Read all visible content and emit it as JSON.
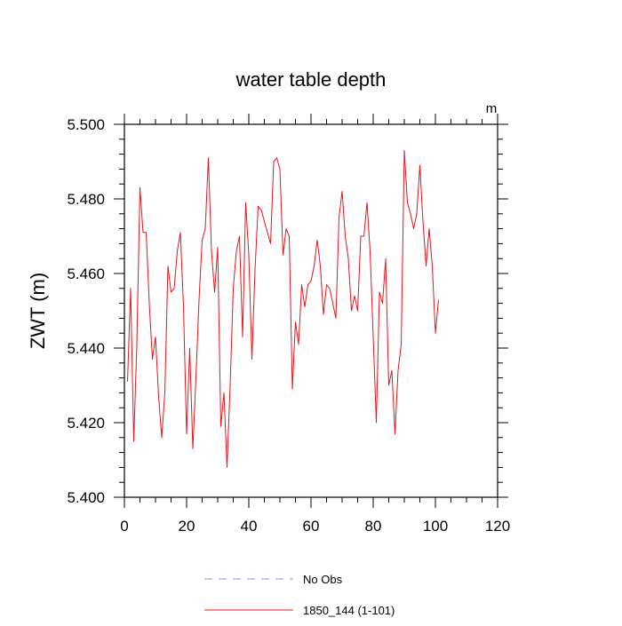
{
  "chart_data": {
    "type": "line",
    "title": "water table depth",
    "units_label": "m",
    "ylabel": "ZWT  (m)",
    "xlabel": "",
    "xlim": [
      0,
      120
    ],
    "ylim": [
      5.4,
      5.5
    ],
    "x_ticks": [
      0,
      20,
      40,
      60,
      80,
      100,
      120
    ],
    "x_tick_labels": [
      "0",
      "20",
      "40",
      "60",
      "80",
      "100",
      "120"
    ],
    "y_ticks": [
      5.4,
      5.42,
      5.44,
      5.46,
      5.48,
      5.5
    ],
    "y_tick_labels": [
      "5.400",
      "5.420",
      "5.440",
      "5.460",
      "5.480",
      "5.500"
    ],
    "grid": false,
    "legend_position": "bottom-center",
    "legend": [
      {
        "label": "No Obs",
        "color": "#8a8af0",
        "style": "dashed"
      },
      {
        "label": "1850_144 (1-101)",
        "color": "#e8141c",
        "style": "solid"
      }
    ],
    "series": [
      {
        "name": "1850_144 (1-101)",
        "color": "#e8141c",
        "x": [
          1,
          2,
          3,
          4,
          5,
          6,
          7,
          8,
          9,
          10,
          11,
          12,
          13,
          14,
          15,
          16,
          17,
          18,
          19,
          20,
          21,
          22,
          23,
          24,
          25,
          26,
          27,
          28,
          29,
          30,
          31,
          32,
          33,
          34,
          35,
          36,
          37,
          38,
          39,
          40,
          41,
          42,
          43,
          44,
          45,
          46,
          47,
          48,
          49,
          50,
          51,
          52,
          53,
          54,
          55,
          56,
          57,
          58,
          59,
          60,
          61,
          62,
          63,
          64,
          65,
          66,
          67,
          68,
          69,
          70,
          71,
          72,
          73,
          74,
          75,
          76,
          77,
          78,
          79,
          80,
          81,
          82,
          83,
          84,
          85,
          86,
          87,
          88,
          89,
          90,
          91,
          92,
          93,
          94,
          95,
          96,
          97,
          98,
          99,
          100,
          101
        ],
        "y": [
          5.431,
          5.456,
          5.415,
          5.441,
          5.483,
          5.471,
          5.471,
          5.452,
          5.437,
          5.443,
          5.427,
          5.416,
          5.428,
          5.462,
          5.455,
          5.456,
          5.466,
          5.471,
          5.451,
          5.417,
          5.44,
          5.413,
          5.432,
          5.453,
          5.469,
          5.472,
          5.491,
          5.466,
          5.455,
          5.467,
          5.419,
          5.428,
          5.408,
          5.43,
          5.456,
          5.466,
          5.47,
          5.443,
          5.479,
          5.465,
          5.437,
          5.461,
          5.478,
          5.477,
          5.474,
          5.471,
          5.468,
          5.49,
          5.491,
          5.488,
          5.465,
          5.472,
          5.47,
          5.429,
          5.447,
          5.441,
          5.457,
          5.451,
          5.457,
          5.458,
          5.462,
          5.469,
          5.462,
          5.449,
          5.457,
          5.456,
          5.452,
          5.448,
          5.475,
          5.482,
          5.47,
          5.464,
          5.45,
          5.454,
          5.45,
          5.47,
          5.47,
          5.479,
          5.466,
          5.443,
          5.42,
          5.455,
          5.452,
          5.464,
          5.43,
          5.434,
          5.417,
          5.434,
          5.441,
          5.493,
          5.479,
          5.476,
          5.472,
          5.476,
          5.489,
          5.474,
          5.462,
          5.472,
          5.462,
          5.444,
          5.453
        ]
      }
    ]
  }
}
